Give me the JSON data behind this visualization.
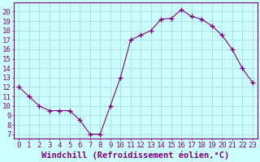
{
  "x": [
    0,
    1,
    2,
    3,
    4,
    5,
    6,
    7,
    8,
    9,
    10,
    11,
    12,
    13,
    14,
    15,
    16,
    17,
    18,
    19,
    20,
    21,
    22,
    23
  ],
  "y": [
    12.0,
    11.0,
    10.0,
    9.5,
    9.5,
    9.5,
    8.5,
    7.0,
    7.0,
    10.0,
    13.0,
    17.0,
    17.5,
    18.0,
    19.2,
    19.3,
    20.2,
    19.5,
    19.2,
    18.5,
    17.5,
    16.0,
    14.0,
    12.5
  ],
  "line_color": "#800080",
  "marker_color": "#800080",
  "bg_color": "#ccffff",
  "grid_color": "#aadddd",
  "xlabel": "Windchill (Refroidissement éolien,°C)",
  "ylabel": "",
  "title": "",
  "xlim": [
    -0.5,
    23.5
  ],
  "ylim": [
    6.5,
    21.0
  ],
  "yticks": [
    7,
    8,
    9,
    10,
    11,
    12,
    13,
    14,
    15,
    16,
    17,
    18,
    19,
    20
  ],
  "xticks": [
    0,
    1,
    2,
    3,
    4,
    5,
    6,
    7,
    8,
    9,
    10,
    11,
    12,
    13,
    14,
    15,
    16,
    17,
    18,
    19,
    20,
    21,
    22,
    23
  ],
  "axis_color": "#800080",
  "tick_label_color": "#800080",
  "xlabel_color": "#800080",
  "font_size": 6.5,
  "xlabel_font_size": 7.5
}
